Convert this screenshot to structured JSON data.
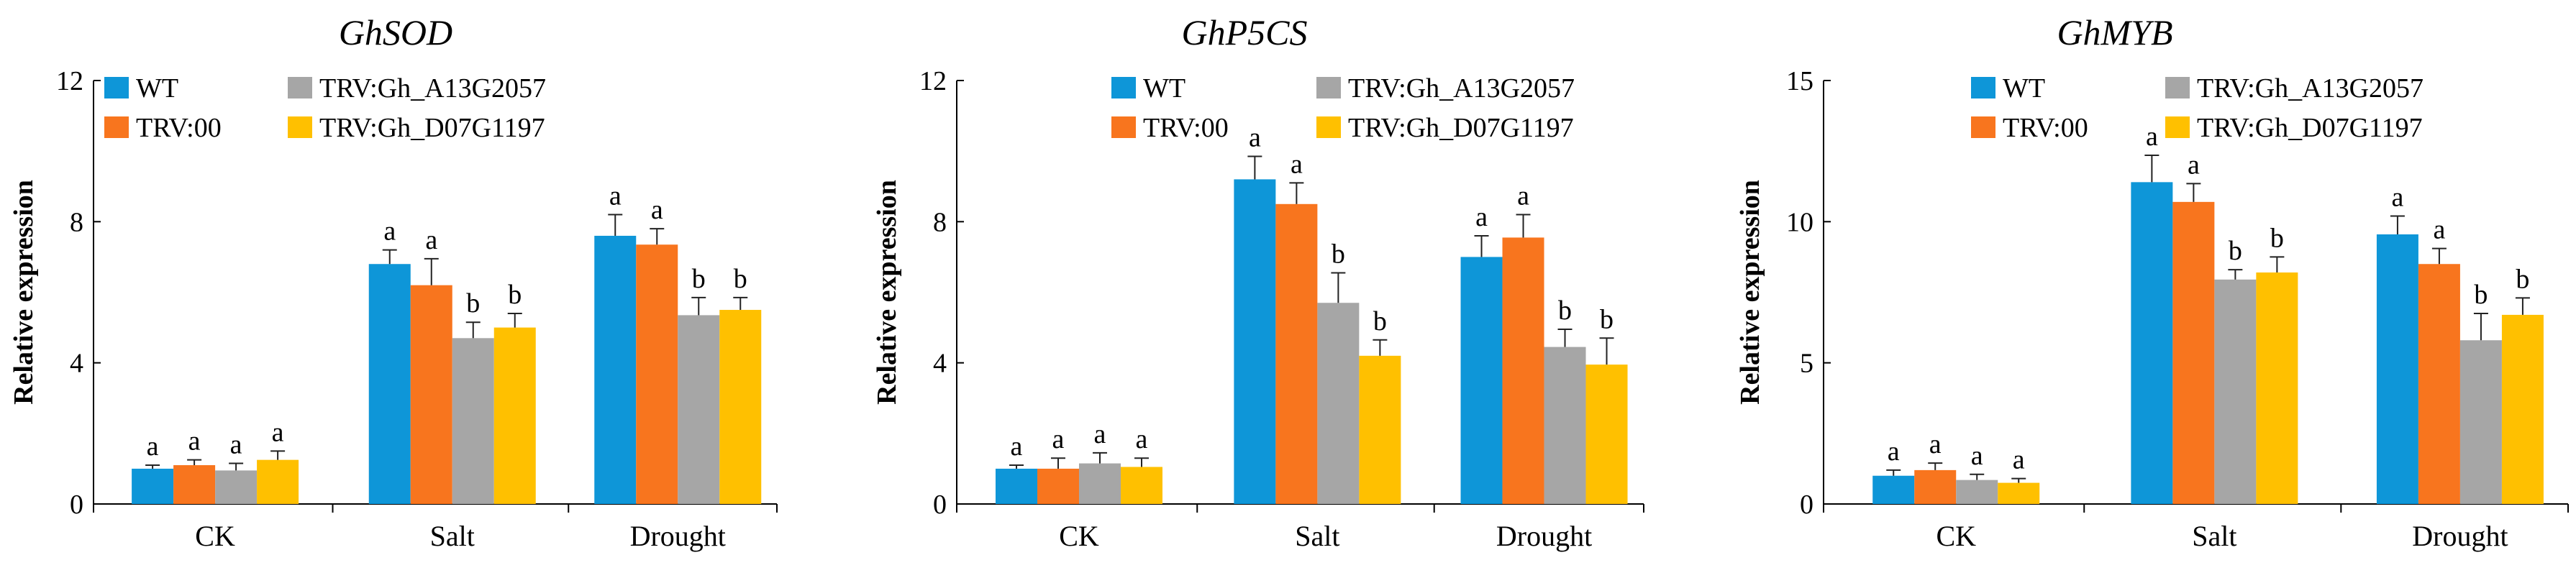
{
  "chart_data": [
    {
      "type": "bar",
      "title": "GhSOD",
      "xlabel": "",
      "ylabel": "Relative expression",
      "ylim": [
        0,
        12
      ],
      "yticks": [
        0,
        4,
        8,
        12
      ],
      "categories": [
        "CK",
        "Salt",
        "Drought"
      ],
      "legend": [
        "WT",
        "TRV:00",
        "TRV:Gh_A13G2057",
        "TRV:Gh_D07G1197"
      ],
      "series": [
        {
          "name": "WT",
          "color": "#0e96d8",
          "values": [
            1.0,
            6.8,
            7.6
          ],
          "errors": [
            0.1,
            0.4,
            0.6
          ],
          "labels": [
            "a",
            "a",
            "a"
          ]
        },
        {
          "name": "TRV:00",
          "color": "#f8751e",
          "values": [
            1.1,
            6.2,
            7.35
          ],
          "errors": [
            0.15,
            0.75,
            0.45
          ],
          "labels": [
            "a",
            "a",
            "a"
          ]
        },
        {
          "name": "TRV:Gh_A13G2057",
          "color": "#a6a6a6",
          "values": [
            0.95,
            4.7,
            5.35
          ],
          "errors": [
            0.2,
            0.45,
            0.5
          ],
          "labels": [
            "a",
            "b",
            "b"
          ]
        },
        {
          "name": "TRV:Gh_D07G1197",
          "color": "#ffc000",
          "values": [
            1.25,
            5.0,
            5.5
          ],
          "errors": [
            0.25,
            0.4,
            0.35
          ],
          "labels": [
            "a",
            "b",
            "b"
          ]
        }
      ]
    },
    {
      "type": "bar",
      "title": "GhP5CS",
      "xlabel": "",
      "ylabel": "Relative expression",
      "ylim": [
        0,
        12
      ],
      "yticks": [
        0,
        4,
        8,
        12
      ],
      "categories": [
        "CK",
        "Salt",
        "Drought"
      ],
      "legend": [
        "WT",
        "TRV:00",
        "TRV:Gh_A13G2057",
        "TRV:Gh_D07G1197"
      ],
      "series": [
        {
          "name": "WT",
          "color": "#0e96d8",
          "values": [
            1.0,
            9.2,
            7.0
          ],
          "errors": [
            0.1,
            0.65,
            0.6
          ],
          "labels": [
            "a",
            "a",
            "a"
          ]
        },
        {
          "name": "TRV:00",
          "color": "#f8751e",
          "values": [
            1.0,
            8.5,
            7.55
          ],
          "errors": [
            0.3,
            0.6,
            0.65
          ],
          "labels": [
            "a",
            "a",
            "a"
          ]
        },
        {
          "name": "TRV:Gh_A13G2057",
          "color": "#a6a6a6",
          "values": [
            1.15,
            5.7,
            4.45
          ],
          "errors": [
            0.3,
            0.85,
            0.5
          ],
          "labels": [
            "a",
            "b",
            "b"
          ]
        },
        {
          "name": "TRV:Gh_D07G1197",
          "color": "#ffc000",
          "values": [
            1.05,
            4.2,
            3.95
          ],
          "errors": [
            0.25,
            0.45,
            0.75
          ],
          "labels": [
            "a",
            "b",
            "b"
          ]
        }
      ]
    },
    {
      "type": "bar",
      "title": "GhMYB",
      "xlabel": "",
      "ylabel": "Relative expression",
      "ylim": [
        0,
        15
      ],
      "yticks": [
        0,
        5,
        10,
        15
      ],
      "categories": [
        "CK",
        "Salt",
        "Drought"
      ],
      "legend": [
        "WT",
        "TRV:00",
        "TRV:Gh_A13G2057",
        "TRV:Gh_D07G1197"
      ],
      "series": [
        {
          "name": "WT",
          "color": "#0e96d8",
          "values": [
            1.0,
            11.4,
            9.55
          ],
          "errors": [
            0.2,
            0.95,
            0.65
          ],
          "labels": [
            "a",
            "a",
            "a"
          ]
        },
        {
          "name": "TRV:00",
          "color": "#f8751e",
          "values": [
            1.2,
            10.7,
            8.5
          ],
          "errors": [
            0.25,
            0.65,
            0.55
          ],
          "labels": [
            "a",
            "a",
            "a"
          ]
        },
        {
          "name": "TRV:Gh_A13G2057",
          "color": "#a6a6a6",
          "values": [
            0.85,
            7.95,
            5.8
          ],
          "errors": [
            0.2,
            0.35,
            0.95
          ],
          "labels": [
            "a",
            "b",
            "b"
          ]
        },
        {
          "name": "TRV:Gh_D07G1197",
          "color": "#ffc000",
          "values": [
            0.75,
            8.2,
            6.7
          ],
          "errors": [
            0.15,
            0.55,
            0.6
          ],
          "labels": [
            "a",
            "b",
            "b"
          ]
        }
      ]
    }
  ]
}
